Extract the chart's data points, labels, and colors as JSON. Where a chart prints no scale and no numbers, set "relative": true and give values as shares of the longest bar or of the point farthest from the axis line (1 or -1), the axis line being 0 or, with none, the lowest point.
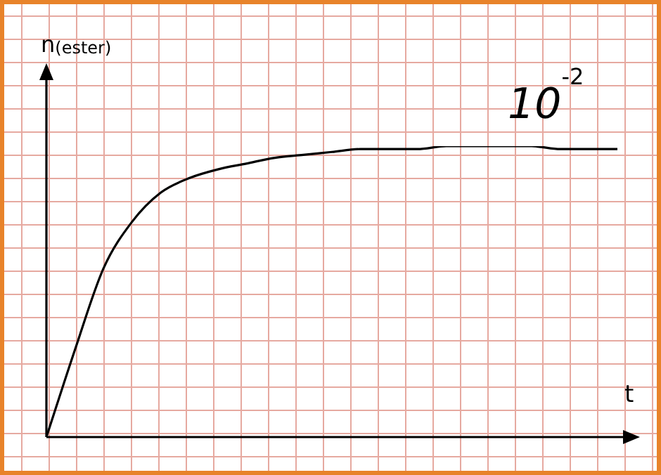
{
  "chart_data": {
    "type": "line",
    "relative": true,
    "ylabel": "n$_{(ester)}$",
    "xlabel": "t",
    "annotations": [
      "10$^{-2}$"
    ],
    "color": "#000000",
    "marker": "none",
    "categories": [
      null,
      null,
      null,
      null,
      null,
      null,
      null,
      null,
      null,
      null,
      null,
      null,
      null,
      null,
      null,
      null,
      null,
      null,
      null,
      null,
      null
    ],
    "values": [
      0,
      0.3,
      0.58,
      0.74,
      0.84,
      0.89,
      0.92,
      0.94,
      0.96,
      0.97,
      0.98,
      0.99,
      0.99,
      0.99,
      1,
      1,
      1,
      1,
      0.99,
      0.99,
      0.99
    ]
  }
}
